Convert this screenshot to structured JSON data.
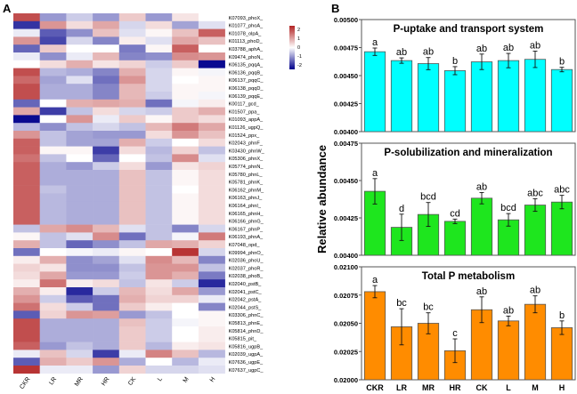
{
  "panel_labels": {
    "a": "A",
    "b": "B"
  },
  "colorbar": {
    "ticks": [
      "2",
      "1",
      "0",
      "-1",
      "-2"
    ],
    "low_color": "#00008b",
    "mid_color": "#ffffff",
    "high_color": "#b22222"
  },
  "chart_data": [
    {
      "type": "heatmap",
      "title": "",
      "columns": [
        "CKR",
        "LR",
        "MR",
        "HR",
        "CK",
        "L",
        "M",
        "H"
      ],
      "rows": [
        "K07093_phoX_",
        "K01077_phoA_",
        "K01078_olpA_",
        "K01113_phoD_",
        "K03788_aphA_",
        "K09474_phoN_",
        "K06135_pqqA_",
        "K06136_pqqB_",
        "K06137_pqqC_",
        "K06138_pqqD_",
        "K06139_pqqE_",
        "K00117_gcd_",
        "K01507_ppa_",
        "K01093_appA_",
        "K01126_ugpQ_",
        "K01524_ppx_",
        "K02043_phnF_",
        "K03430_phnW_",
        "K05306_phnX_",
        "K05774_phnN_",
        "K05780_phnL_",
        "K05781_phnK_",
        "K06162_phnM_",
        "K06163_phnJ_",
        "K06164_phnI_",
        "K06165_phnH_",
        "K06166_phnG_",
        "K06167_phnP_",
        "K06193_phnA_",
        "K07048_opd_",
        "K09994_phnO_",
        "K02036_phoU_",
        "K02037_phoR_",
        "K02038_phoB_",
        "K02040_pstB_",
        "K02041_pstC_",
        "K02042_pstA_",
        "K02044_pstS_",
        "K03306_phnC_",
        "K05813_phnE_",
        "K05814_phnD_",
        "K05815_pit_",
        "K05816_ugpB_",
        "K02039_ugpA_",
        "K07636_ugpE_",
        "K07637_ugpC_"
      ],
      "values": [
        [
          2,
          -1,
          -0.5,
          -1,
          0.6,
          -1,
          0.3,
          0
        ],
        [
          -2,
          1.2,
          0.4,
          1,
          -0.4,
          0.4,
          -0.9,
          -0.3
        ],
        [
          -0.2,
          -1.6,
          -1.1,
          0.7,
          -0.3,
          0.1,
          0.7,
          1.8
        ],
        [
          1.2,
          -1.8,
          -0.4,
          -1.2,
          0.2,
          -0.3,
          1,
          0.7
        ],
        [
          -1.5,
          0.6,
          0,
          0,
          -1.3,
          0.1,
          1.8,
          0
        ],
        [
          -0.2,
          -1.1,
          -0.2,
          0.8,
          -1.2,
          -1.1,
          1.3,
          1.2
        ],
        [
          0,
          0.4,
          0.9,
          0.3,
          0.5,
          -0.5,
          0.6,
          -2.4
        ],
        [
          2,
          -0.7,
          -0.8,
          -1.2,
          0.9,
          -0.4,
          0.1,
          -0.1
        ],
        [
          1.7,
          -0.9,
          -0.3,
          -1.4,
          1.2,
          -0.4,
          0,
          0.1
        ],
        [
          2,
          -0.8,
          -0.8,
          -1.2,
          0.8,
          -0.4,
          0.1,
          0.1
        ],
        [
          2,
          -0.8,
          -0.8,
          -1.2,
          0.8,
          -0.5,
          0.1,
          -0.1
        ],
        [
          -1.5,
          0,
          0.9,
          1,
          0.9,
          -1.4,
          -0.1,
          0.2
        ],
        [
          1,
          -1.9,
          -0.6,
          0.4,
          -0.4,
          -0.5,
          0.6,
          0.9
        ],
        [
          -2.4,
          0,
          1.2,
          -0.2,
          0.6,
          0.1,
          0.6,
          0.4
        ],
        [
          -0.7,
          -1.1,
          -0.6,
          -0.4,
          -0.6,
          0.8,
          1.5,
          1
        ],
        [
          1.2,
          -0.6,
          -0.9,
          -1,
          -1,
          0.4,
          1.2,
          0.7
        ],
        [
          1.8,
          -0.6,
          -0.9,
          -0.9,
          0.9,
          -0.5,
          0,
          0.4
        ],
        [
          1.8,
          0.1,
          0.1,
          -1.9,
          0.4,
          -0.7,
          0.5,
          -0.6
        ],
        [
          1.6,
          -0.6,
          0,
          -1.5,
          0,
          -0.6,
          1.3,
          -0.3
        ],
        [
          1.8,
          -0.8,
          -1,
          -0.5,
          0.4,
          -1,
          0.3,
          0.5
        ],
        [
          1.8,
          -0.8,
          -0.8,
          -0.8,
          0.7,
          -0.6,
          0.1,
          0.4
        ],
        [
          1.8,
          -0.8,
          -0.8,
          -0.8,
          0.7,
          -0.6,
          0.1,
          0.4
        ],
        [
          1.8,
          -0.6,
          -0.8,
          -0.8,
          0.7,
          -0.6,
          0,
          0.4
        ],
        [
          1.8,
          -0.7,
          -0.8,
          -0.8,
          0.7,
          -0.6,
          0.1,
          0.4
        ],
        [
          1.8,
          -0.7,
          -0.8,
          -0.8,
          0.7,
          -0.6,
          0.1,
          0.4
        ],
        [
          1.8,
          -0.7,
          -0.8,
          -0.8,
          0.7,
          -0.6,
          0.1,
          0.4
        ],
        [
          1.8,
          -0.7,
          -0.8,
          -0.8,
          0.7,
          -0.6,
          0.1,
          0.4
        ],
        [
          -0.6,
          1,
          1.3,
          0.8,
          -0.3,
          -0.6,
          -1.2,
          -0.4
        ],
        [
          0.1,
          -0.6,
          -0.3,
          1.3,
          -1.4,
          -0.6,
          -0.1,
          1.5
        ],
        [
          0.9,
          -0.6,
          -1.5,
          -1.1,
          -0.6,
          1,
          0.9,
          0.5
        ],
        [
          -1.4,
          0,
          -0.1,
          -0.2,
          0.1,
          0,
          2.3,
          -0.4
        ],
        [
          0.2,
          0.9,
          -1.1,
          -0.9,
          -0.3,
          1.3,
          0.8,
          -1.2
        ],
        [
          0.5,
          0.3,
          -1.1,
          -1.1,
          -0.6,
          1.2,
          1.2,
          -0.6
        ],
        [
          0.4,
          1,
          -1,
          -1,
          -0.5,
          1.2,
          0.9,
          -1.3
        ],
        [
          0.2,
          1.6,
          0.2,
          0.4,
          -0.6,
          0.3,
          -0.5,
          -2.1
        ],
        [
          0.9,
          0.2,
          -2.1,
          -0.5,
          0.8,
          0.4,
          1,
          -1
        ],
        [
          1.2,
          -0.5,
          -1.6,
          -1.4,
          0.9,
          0.5,
          0.5,
          -0.2
        ],
        [
          1.6,
          0.4,
          -0.5,
          -1.4,
          0.6,
          0.2,
          0,
          -1.2
        ],
        [
          -1.6,
          0.5,
          1.2,
          1.1,
          -1,
          -0.6,
          0,
          0.1
        ],
        [
          2,
          -0.8,
          -0.8,
          -0.8,
          0.7,
          -0.5,
          -0.1,
          0.1
        ],
        [
          2,
          -0.8,
          -0.8,
          -0.8,
          0.6,
          -0.5,
          0,
          0.2
        ],
        [
          2,
          -0.8,
          -0.8,
          -0.8,
          0.6,
          -0.5,
          0,
          0.2
        ],
        [
          1.8,
          -1,
          -0.6,
          -0.8,
          0.6,
          -0.7,
          0.2,
          0.3
        ],
        [
          -0.2,
          0.7,
          -0.4,
          -1.9,
          -0.2,
          1.4,
          0.7,
          -0.7
        ],
        [
          -1.6,
          0.9,
          0.6,
          1.2,
          -0.8,
          0,
          -0.7,
          -0.2
        ],
        [
          2.3,
          -0.2,
          -0.2,
          -1,
          0.5,
          -0.4,
          -0.4,
          -0.3
        ]
      ],
      "zlim": [
        -2,
        2
      ]
    },
    {
      "type": "bar",
      "title": "P-uptake and transport system",
      "categories": [
        "CKR",
        "LR",
        "MR",
        "HR",
        "CK",
        "L",
        "M",
        "H"
      ],
      "values": [
        0.004713,
        0.004634,
        0.004607,
        0.004544,
        0.004623,
        0.004634,
        0.004645,
        0.004554
      ],
      "errors": [
        3.3e-05,
        2.4e-05,
        5.4e-05,
        3.6e-05,
        6.9e-05,
        6.4e-05,
        7.3e-05,
        2e-05
      ],
      "letters": [
        "a",
        "ab",
        "ab",
        "b",
        "ab",
        "ab",
        "ab",
        "b"
      ],
      "ylim": [
        0.004,
        0.005
      ],
      "yticks": [
        "0.00400",
        "0.00425",
        "0.00450",
        "0.00475",
        "0.00500"
      ],
      "color": "#00ffff"
    },
    {
      "type": "bar",
      "title": "P-solubilization and mineralization",
      "categories": [
        "CKR",
        "LR",
        "MR",
        "HR",
        "CK",
        "L",
        "M",
        "H"
      ],
      "values": [
        0.004428,
        0.004187,
        0.004273,
        0.004227,
        0.004382,
        0.004237,
        0.004336,
        0.004356
      ],
      "errors": [
        8.5e-05,
        8.8e-05,
        8e-05,
        1.5e-05,
        3.8e-05,
        4.2e-05,
        4.2e-05,
        4.5e-05
      ],
      "letters": [
        "a",
        "d",
        "bcd",
        "cd",
        "ab",
        "bcd",
        "abc",
        "abc"
      ],
      "ylim": [
        0.004,
        0.00475
      ],
      "yticks": [
        "0.00400",
        "0.00425",
        "0.00450",
        "0.00475"
      ],
      "color": "#1ee61e"
    },
    {
      "type": "bar",
      "title": "Total P metabolism",
      "categories": [
        "CKR",
        "LR",
        "MR",
        "HR",
        "CK",
        "L",
        "M",
        "H"
      ],
      "values": [
        0.02078,
        0.020469,
        0.0205,
        0.020257,
        0.02062,
        0.020521,
        0.020668,
        0.020461
      ],
      "errors": [
        5.4e-05,
        0.00016,
        9.3e-05,
        0.000105,
        0.000114,
        4.3e-05,
        7.5e-05,
        6e-05
      ],
      "letters": [
        "a",
        "bc",
        "bc",
        "c",
        "ab",
        "ab",
        "ab",
        "b"
      ],
      "ylim": [
        0.02,
        0.021
      ],
      "yticks": [
        "0.02000",
        "0.02025",
        "0.02050",
        "0.02075",
        "0.02100"
      ],
      "color": "#ff8c00"
    }
  ],
  "ylabel": "Relative abundance"
}
